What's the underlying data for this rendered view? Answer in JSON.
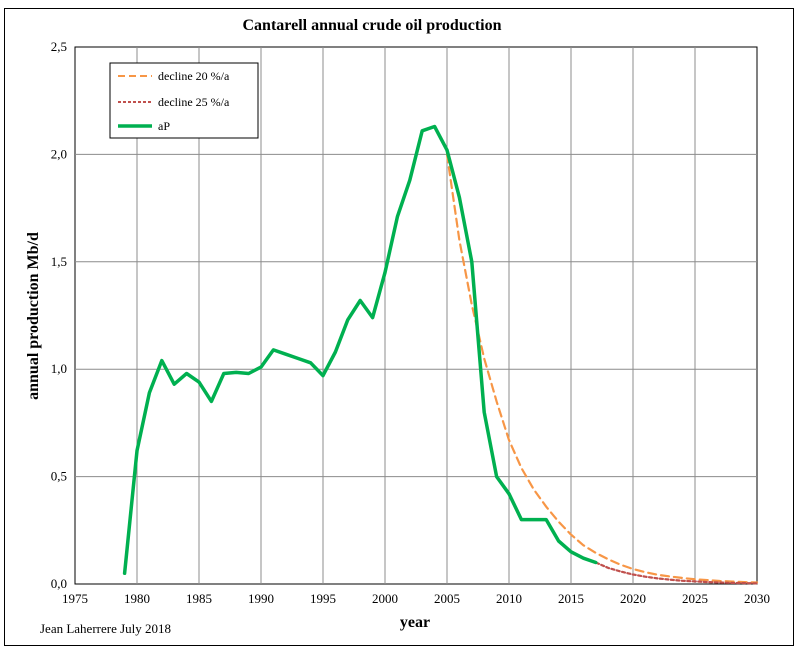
{
  "chart_data": {
    "type": "line",
    "title": "Cantarell annual crude oil production",
    "xlabel": "year",
    "ylabel": "annual production Mb/d",
    "xlim": [
      1975,
      2030
    ],
    "ylim": [
      0,
      2.5
    ],
    "x_ticks": [
      1975,
      1980,
      1985,
      1990,
      1995,
      2000,
      2005,
      2010,
      2015,
      2020,
      2025,
      2030
    ],
    "x_tick_labels": [
      "1975",
      "1980",
      "1985",
      "1990",
      "1995",
      "2000",
      "2005",
      "2010",
      "2015",
      "2020",
      "2025",
      "2030"
    ],
    "y_ticks": [
      0,
      0.5,
      1,
      1.5,
      2,
      2.5
    ],
    "y_tick_labels": [
      "0,0",
      "0,5",
      "1,0",
      "1,5",
      "2,0",
      "2,5"
    ],
    "grid": true,
    "legend_position": "top-left",
    "series": [
      {
        "name": "decline 20 %/a",
        "color": "#F79646",
        "dash": "dashed",
        "x": [
          2005,
          2006,
          2007,
          2008,
          2009,
          2010,
          2011,
          2012,
          2013,
          2014,
          2015,
          2016,
          2017,
          2018,
          2019,
          2020,
          2021,
          2022,
          2023,
          2024,
          2025,
          2026,
          2027,
          2028,
          2029,
          2030
        ],
        "y": [
          2.0,
          1.6,
          1.3,
          1.05,
          0.85,
          0.67,
          0.54,
          0.44,
          0.36,
          0.29,
          0.23,
          0.18,
          0.145,
          0.115,
          0.09,
          0.07,
          0.055,
          0.043,
          0.035,
          0.028,
          0.022,
          0.018,
          0.014,
          0.011,
          0.009,
          0.007
        ]
      },
      {
        "name": "decline 25 %/a",
        "color": "#C0504D",
        "dash": "dotted",
        "x": [
          2015,
          2016,
          2017,
          2018,
          2019,
          2020,
          2021,
          2022,
          2023,
          2024,
          2025,
          2026,
          2027,
          2028,
          2029,
          2030
        ],
        "y": [
          0.15,
          0.12,
          0.1,
          0.075,
          0.058,
          0.044,
          0.034,
          0.026,
          0.02,
          0.015,
          0.012,
          0.009,
          0.007,
          0.005,
          0.004,
          0.003
        ]
      },
      {
        "name": "aP",
        "color": "#00B050",
        "dash": "solid",
        "x": [
          1979,
          1980,
          1981,
          1982,
          1983,
          1984,
          1985,
          1986,
          1987,
          1988,
          1989,
          1990,
          1991,
          1992,
          1993,
          1994,
          1995,
          1996,
          1997,
          1998,
          1999,
          2000,
          2001,
          2002,
          2003,
          2004,
          2005,
          2006,
          2007,
          2008,
          2009,
          2010,
          2011,
          2012,
          2013,
          2014,
          2015,
          2016,
          2017
        ],
        "y": [
          0.05,
          0.62,
          0.89,
          1.04,
          0.93,
          0.98,
          0.94,
          0.85,
          0.98,
          0.985,
          0.98,
          1.01,
          1.09,
          1.07,
          1.05,
          1.03,
          0.97,
          1.08,
          1.23,
          1.32,
          1.24,
          1.45,
          1.71,
          1.88,
          2.11,
          2.13,
          2.02,
          1.8,
          1.5,
          0.8,
          0.5,
          0.42,
          0.3,
          0.3,
          0.3,
          0.2,
          0.15,
          0.12,
          0.1
        ]
      }
    ]
  },
  "credit": "Jean Laherrere July 2018"
}
